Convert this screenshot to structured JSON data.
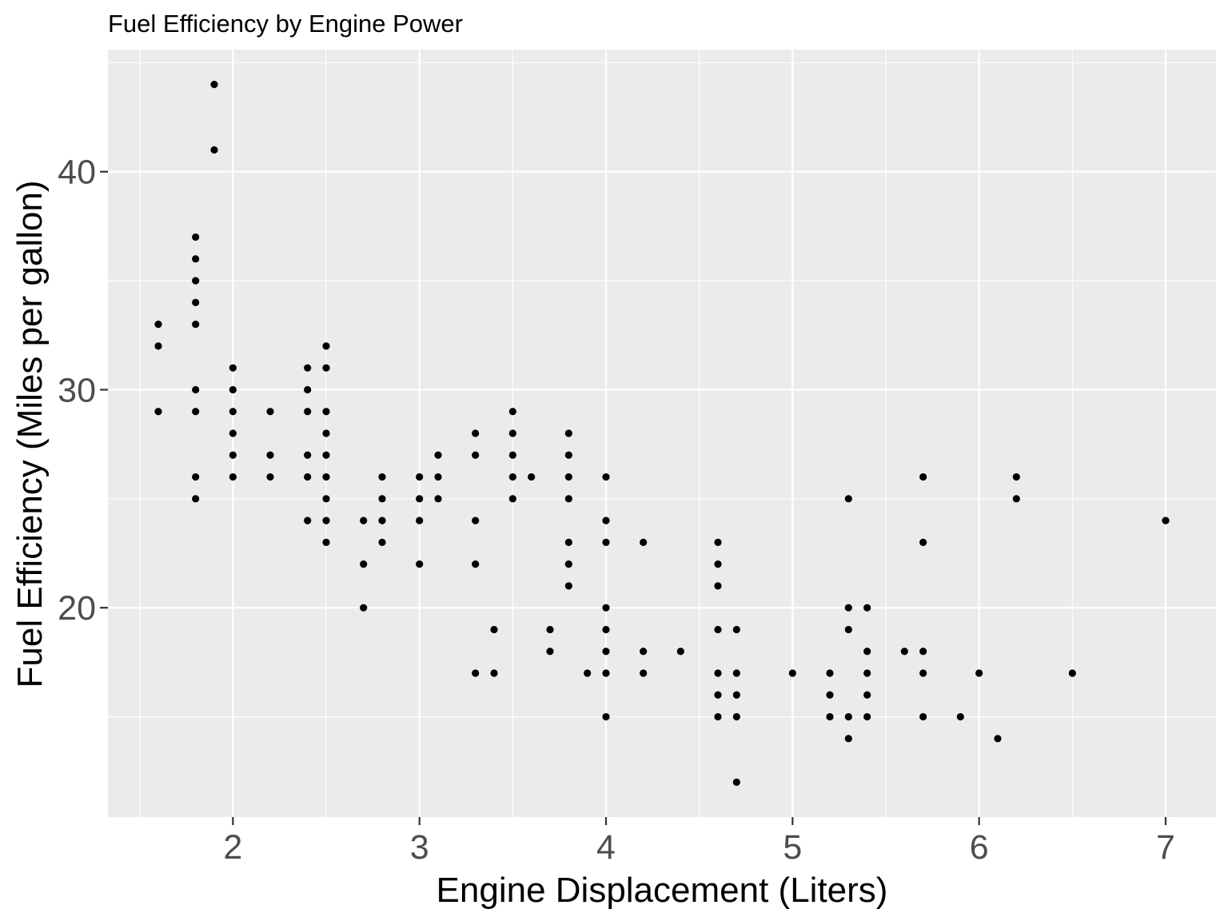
{
  "chart_data": {
    "type": "scatter",
    "title": "Fuel Efficiency by Engine Power",
    "xlabel": "Engine Displacement (Liters)",
    "ylabel": "Fuel Efficiency (Miles per gallon)",
    "xlim": [
      1.33,
      7.27
    ],
    "ylim": [
      10.4,
      45.6
    ],
    "x_ticks": [
      2,
      3,
      4,
      5,
      6,
      7
    ],
    "y_ticks": [
      20,
      30,
      40
    ],
    "grid": true,
    "legend": "none",
    "colors": {
      "panel": "#ebebeb",
      "grid": "#ffffff",
      "point": "#000000"
    },
    "points": [
      [
        1.6,
        33
      ],
      [
        1.6,
        32
      ],
      [
        1.6,
        29
      ],
      [
        1.8,
        37
      ],
      [
        1.8,
        36
      ],
      [
        1.8,
        35
      ],
      [
        1.8,
        34
      ],
      [
        1.8,
        33
      ],
      [
        1.8,
        30
      ],
      [
        1.8,
        29
      ],
      [
        1.8,
        26
      ],
      [
        1.8,
        25
      ],
      [
        1.9,
        44
      ],
      [
        1.9,
        41
      ],
      [
        2.0,
        31
      ],
      [
        2.0,
        30
      ],
      [
        2.0,
        29
      ],
      [
        2.0,
        28
      ],
      [
        2.0,
        27
      ],
      [
        2.0,
        26
      ],
      [
        2.2,
        29
      ],
      [
        2.2,
        27
      ],
      [
        2.2,
        26
      ],
      [
        2.4,
        31
      ],
      [
        2.4,
        30
      ],
      [
        2.4,
        29
      ],
      [
        2.4,
        27
      ],
      [
        2.4,
        26
      ],
      [
        2.4,
        24
      ],
      [
        2.5,
        32
      ],
      [
        2.5,
        31
      ],
      [
        2.5,
        29
      ],
      [
        2.5,
        28
      ],
      [
        2.5,
        27
      ],
      [
        2.5,
        26
      ],
      [
        2.5,
        25
      ],
      [
        2.5,
        24
      ],
      [
        2.5,
        23
      ],
      [
        2.7,
        24
      ],
      [
        2.7,
        22
      ],
      [
        2.7,
        20
      ],
      [
        2.8,
        26
      ],
      [
        2.8,
        25
      ],
      [
        2.8,
        24
      ],
      [
        2.8,
        23
      ],
      [
        3.0,
        26
      ],
      [
        3.0,
        25
      ],
      [
        3.0,
        24
      ],
      [
        3.0,
        22
      ],
      [
        3.1,
        27
      ],
      [
        3.1,
        26
      ],
      [
        3.1,
        25
      ],
      [
        3.3,
        28
      ],
      [
        3.3,
        27
      ],
      [
        3.3,
        24
      ],
      [
        3.3,
        22
      ],
      [
        3.3,
        17
      ],
      [
        3.4,
        19
      ],
      [
        3.4,
        17
      ],
      [
        3.5,
        29
      ],
      [
        3.5,
        28
      ],
      [
        3.5,
        27
      ],
      [
        3.5,
        26
      ],
      [
        3.5,
        25
      ],
      [
        3.6,
        26
      ],
      [
        3.7,
        19
      ],
      [
        3.7,
        18
      ],
      [
        3.8,
        28
      ],
      [
        3.8,
        27
      ],
      [
        3.8,
        26
      ],
      [
        3.8,
        25
      ],
      [
        3.8,
        23
      ],
      [
        3.8,
        22
      ],
      [
        3.8,
        21
      ],
      [
        3.9,
        17
      ],
      [
        4.0,
        26
      ],
      [
        4.0,
        24
      ],
      [
        4.0,
        23
      ],
      [
        4.0,
        20
      ],
      [
        4.0,
        19
      ],
      [
        4.0,
        18
      ],
      [
        4.0,
        17
      ],
      [
        4.0,
        15
      ],
      [
        4.2,
        23
      ],
      [
        4.2,
        18
      ],
      [
        4.2,
        17
      ],
      [
        4.4,
        18
      ],
      [
        4.6,
        23
      ],
      [
        4.6,
        22
      ],
      [
        4.6,
        21
      ],
      [
        4.6,
        19
      ],
      [
        4.6,
        17
      ],
      [
        4.6,
        16
      ],
      [
        4.6,
        15
      ],
      [
        4.7,
        19
      ],
      [
        4.7,
        17
      ],
      [
        4.7,
        16
      ],
      [
        4.7,
        15
      ],
      [
        4.7,
        12
      ],
      [
        5.0,
        17
      ],
      [
        5.2,
        17
      ],
      [
        5.2,
        16
      ],
      [
        5.2,
        15
      ],
      [
        5.3,
        25
      ],
      [
        5.3,
        20
      ],
      [
        5.3,
        19
      ],
      [
        5.3,
        15
      ],
      [
        5.3,
        14
      ],
      [
        5.4,
        20
      ],
      [
        5.4,
        18
      ],
      [
        5.4,
        17
      ],
      [
        5.4,
        16
      ],
      [
        5.4,
        15
      ],
      [
        5.6,
        18
      ],
      [
        5.7,
        26
      ],
      [
        5.7,
        23
      ],
      [
        5.7,
        18
      ],
      [
        5.7,
        17
      ],
      [
        5.7,
        15
      ],
      [
        5.9,
        15
      ],
      [
        6.0,
        17
      ],
      [
        6.1,
        14
      ],
      [
        6.2,
        26
      ],
      [
        6.2,
        25
      ],
      [
        6.5,
        17
      ],
      [
        7.0,
        24
      ]
    ]
  }
}
